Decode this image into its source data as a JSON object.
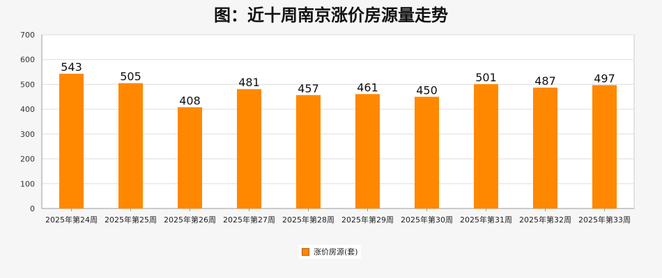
{
  "chart_data": {
    "type": "bar",
    "title": "图：近十周南京涨价房源量走势",
    "categories": [
      "2025年第24周",
      "2025年第25周",
      "2025年第26周",
      "2025年第27周",
      "2025年第28周",
      "2025年第29周",
      "2025年第30周",
      "2025年第31周",
      "2025年第32周",
      "2025年第33周"
    ],
    "series": [
      {
        "name": "涨价房源(套)",
        "values": [
          543,
          505,
          408,
          481,
          457,
          461,
          450,
          501,
          487,
          497
        ],
        "color": "#ff8800"
      }
    ],
    "ylim": [
      0,
      700
    ],
    "yticks": [
      0,
      100,
      200,
      300,
      400,
      500,
      600,
      700
    ],
    "grid": true,
    "legend_position": "bottom-center",
    "data_labels": true
  }
}
